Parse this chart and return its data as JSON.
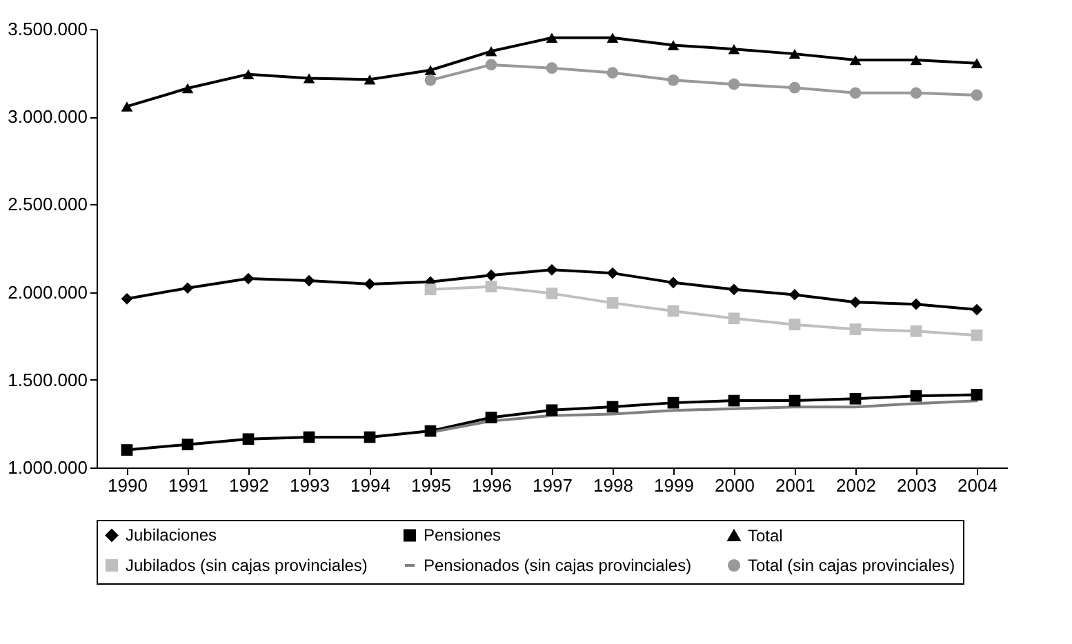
{
  "chart_data": {
    "type": "line",
    "categories": [
      "1990",
      "1991",
      "1992",
      "1993",
      "1994",
      "1995",
      "1996",
      "1997",
      "1998",
      "1999",
      "2000",
      "2001",
      "2002",
      "2003",
      "2004"
    ],
    "ylim": [
      1000000,
      3500000
    ],
    "yticks": [
      {
        "value": 1000000,
        "label": "1.000.000"
      },
      {
        "value": 1500000,
        "label": "1.500.000"
      },
      {
        "value": 2000000,
        "label": "2.000.000"
      },
      {
        "value": 2500000,
        "label": "2.500.000"
      },
      {
        "value": 3000000,
        "label": "3.000.000"
      },
      {
        "value": 3500000,
        "label": "3.500.000"
      }
    ],
    "grid": false,
    "legend": "bottom",
    "line_style": "solid",
    "series": [
      {
        "name": "Jubilaciones",
        "color": "#000000",
        "marker": "diamond",
        "values": [
          1962000,
          2023000,
          2077000,
          2065000,
          2046000,
          2058000,
          2096000,
          2127000,
          2108000,
          2054000,
          2015000,
          1985000,
          1942000,
          1931000,
          1900000
        ]
      },
      {
        "name": "Pensiones",
        "color": "#000000",
        "marker": "square",
        "values": [
          1100000,
          1131000,
          1162000,
          1173000,
          1173000,
          1208000,
          1285000,
          1327000,
          1346000,
          1369000,
          1381000,
          1381000,
          1392000,
          1408000,
          1415000
        ]
      },
      {
        "name": "Total",
        "color": "#000000",
        "marker": "triangle",
        "values": [
          3058000,
          3162000,
          3242000,
          3219000,
          3212000,
          3265000,
          3373000,
          3450000,
          3450000,
          3408000,
          3385000,
          3358000,
          3323000,
          3323000,
          3304000
        ]
      },
      {
        "name": "Jubilados (sin cajas provinciales)",
        "color": "#bfbfbf",
        "marker": "square",
        "values": [
          null,
          null,
          null,
          null,
          null,
          2015000,
          2031000,
          1992000,
          1938000,
          1892000,
          1850000,
          1815000,
          1788000,
          1777000,
          1754000
        ]
      },
      {
        "name": "Pensionados (sin cajas provinciales)",
        "color": "#808080",
        "marker": "none",
        "values": [
          null,
          null,
          null,
          null,
          null,
          1200000,
          1265000,
          1296000,
          1305000,
          1325000,
          1335000,
          1345000,
          1345000,
          1365000,
          1380000
        ]
      },
      {
        "name": "Total (sin cajas provinciales)",
        "color": "#999999",
        "marker": "circle",
        "values": [
          null,
          null,
          null,
          null,
          null,
          3208000,
          3296000,
          3277000,
          3250000,
          3208000,
          3185000,
          3165000,
          3135000,
          3135000,
          3123000
        ]
      }
    ]
  }
}
